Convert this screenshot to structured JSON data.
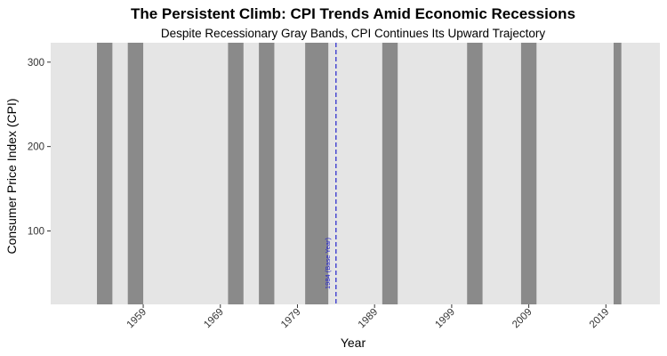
{
  "chart_data": {
    "type": "area",
    "title": "The Persistent Climb: CPI Trends Amid Economic Recessions",
    "subtitle": "Despite Recessionary Gray Bands, CPI Continues Its Upward Trajectory",
    "xlabel": "Year",
    "ylabel": "Consumer Price Index (CPI)",
    "xlim": [
      1947,
      2026
    ],
    "ylim": [
      13,
      323
    ],
    "x_ticks": [
      1959,
      1969,
      1979,
      1989,
      1999,
      2009,
      2019
    ],
    "x_tick_labels": [
      "1959",
      "1969",
      "1979",
      "1989",
      "1999",
      "2009",
      "2019"
    ],
    "y_ticks": [
      100,
      200,
      300
    ],
    "y_tick_labels": [
      "100",
      "200",
      "300"
    ],
    "recessions": [
      {
        "start": 1953,
        "end": 1955
      },
      {
        "start": 1957,
        "end": 1959
      },
      {
        "start": 1970,
        "end": 1972
      },
      {
        "start": 1974,
        "end": 1976
      },
      {
        "start": 1980,
        "end": 1983
      },
      {
        "start": 1990,
        "end": 1992
      },
      {
        "start": 2001,
        "end": 2003
      },
      {
        "start": 2008,
        "end": 2010
      },
      {
        "start": 2020,
        "end": 2021
      }
    ],
    "base_year": {
      "x": 1984,
      "label": "1984 (Base Year)",
      "color": "#2222cc"
    },
    "colors": {
      "panel": "#e5e5e5",
      "band": "#8a8a8a"
    },
    "grid": false,
    "legend": "none"
  }
}
